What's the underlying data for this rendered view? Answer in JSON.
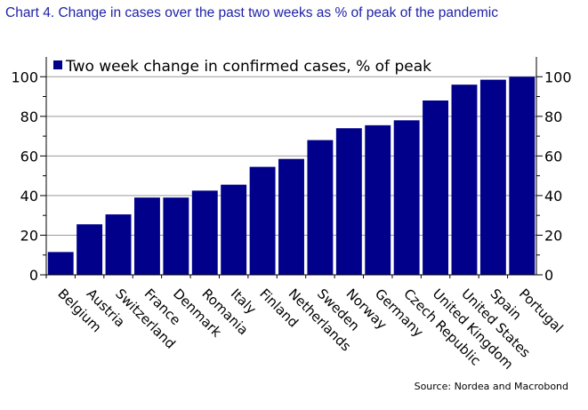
{
  "chart_data": {
    "type": "bar",
    "title": "Chart 4. Change in cases over the past two weeks as % of peak of the pandemic",
    "source": "Source: Nordea and Macrobond",
    "legend": {
      "position": "top-left",
      "entries": [
        "Two week change in confirmed cases, % of peak"
      ]
    },
    "categories": [
      "Belgium",
      "Austria",
      "Switzerland",
      "France",
      "Denmark",
      "Romania",
      "Italy",
      "Finland",
      "Netherlands",
      "Sweden",
      "Norway",
      "Germany",
      "Czech Republic",
      "United Kingdom",
      "United States",
      "Spain",
      "Portugal"
    ],
    "series": [
      {
        "name": "Two week change in confirmed cases, % of peak",
        "color": "#00008b",
        "values": [
          11.5,
          25.5,
          30.5,
          39,
          39,
          42.5,
          45.5,
          54.5,
          58.5,
          68,
          74,
          75.5,
          78,
          88,
          96,
          98.5,
          100
        ]
      }
    ],
    "ylim": [
      0,
      110
    ],
    "yticks": [
      "0",
      "20",
      "40",
      "60",
      "80",
      "100"
    ],
    "grid": true,
    "dual_y_axis": true
  }
}
